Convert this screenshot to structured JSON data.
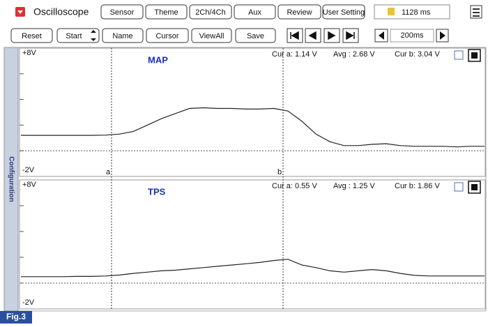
{
  "toolbar": {
    "title": "Oscilloscope",
    "buttons_row1": [
      "Sensor",
      "Theme",
      "2Ch/4Ch",
      "Aux",
      "Review",
      "User Setting"
    ],
    "time_display": "1128 ms",
    "buttons_row2": [
      "Reset",
      "Start",
      "Name",
      "Cursor",
      "ViewAll",
      "Save"
    ],
    "timebase": "200ms"
  },
  "side_tab": "Configuration",
  "channels": [
    {
      "name": "MAP",
      "top_label": "+8V",
      "bottom_label": "-2V",
      "cur_a": "Cur a: 1.14 V",
      "avg": "Avg  : 2.68 V",
      "cur_b": "Cur b: 3.04 V",
      "cursor_a_label": "a",
      "cursor_b_label": "b",
      "ylim": [
        -2,
        8
      ],
      "yticks": [
        0,
        2,
        4,
        6
      ],
      "values": [
        1.2,
        1.2,
        1.2,
        1.2,
        1.2,
        1.2,
        1.22,
        1.3,
        1.5,
        2.0,
        2.5,
        2.9,
        3.3,
        3.35,
        3.3,
        3.3,
        3.25,
        3.25,
        3.3,
        3.1,
        2.3,
        1.3,
        0.7,
        0.4,
        0.4,
        0.5,
        0.55,
        0.4,
        0.35,
        0.35,
        0.35,
        0.3,
        0.35,
        0.35
      ]
    },
    {
      "name": "TPS",
      "top_label": "+8V",
      "bottom_label": "-2V",
      "cur_a": "Cur a: 0.55 V",
      "avg": "Avg  : 1.25 V",
      "cur_b": "Cur b: 1.86 V",
      "ylim": [
        -2,
        8
      ],
      "yticks": [
        0,
        2,
        4,
        6
      ],
      "values": [
        0.5,
        0.5,
        0.5,
        0.5,
        0.52,
        0.52,
        0.55,
        0.62,
        0.75,
        0.85,
        0.95,
        1.0,
        1.1,
        1.2,
        1.3,
        1.4,
        1.5,
        1.6,
        1.75,
        1.85,
        1.4,
        1.2,
        0.95,
        0.85,
        0.95,
        1.05,
        0.95,
        0.75,
        0.6,
        0.55,
        0.55,
        0.55,
        0.55,
        0.55
      ]
    }
  ],
  "figure_label": "Fig.3"
}
